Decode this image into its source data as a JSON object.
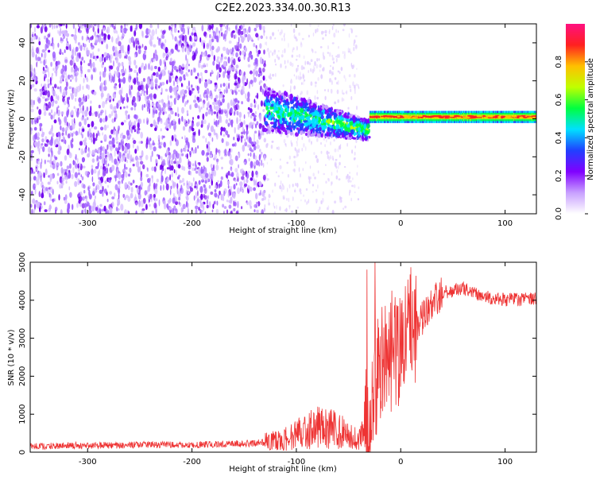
{
  "page": {
    "title": "C2E2.2023.334.00.30.R13"
  },
  "chart_data": [
    {
      "type": "heatmap",
      "title": "",
      "xlabel": "Height of straight line (km)",
      "ylabel": "Frequency (Hz)",
      "xlim": [
        -355,
        130
      ],
      "ylim": [
        -50,
        50
      ],
      "x_ticks": [
        -300,
        -200,
        -100,
        0,
        100
      ],
      "y_ticks": [
        -40,
        -20,
        0,
        20,
        40
      ],
      "colorbar": {
        "label": "Normalized spectral amplitude",
        "range": [
          0,
          1
        ],
        "ticks": [
          "0.0",
          "0.2",
          "0.4",
          "0.6",
          "0.8"
        ],
        "colors": [
          "#ffffff",
          "#c8a0ff",
          "#8000ff",
          "#2040ff",
          "#00e0ff",
          "#00ff40",
          "#c0ff00",
          "#ffc000",
          "#ff2020",
          "#ff1080"
        ]
      },
      "regions": [
        {
          "name": "noise",
          "x": [
            -355,
            -130
          ],
          "freq_range": [
            -50,
            50
          ],
          "amplitude": 0.1
        },
        {
          "name": "transition",
          "x": [
            -130,
            -30
          ],
          "freq_center": [
            5,
            -6
          ],
          "amplitude": 0.4
        },
        {
          "name": "signal",
          "x": [
            -30,
            130
          ],
          "freq_center": [
            1,
            1
          ],
          "amplitude": 0.9
        }
      ]
    },
    {
      "type": "line",
      "title": "",
      "xlabel": "Height of straight line (km)",
      "ylabel": "SNR (10 * v/v)",
      "xlim": [
        -355,
        130
      ],
      "ylim": [
        0,
        5000
      ],
      "x_ticks": [
        -300,
        -200,
        -100,
        0,
        100
      ],
      "y_ticks": [
        0,
        1000,
        2000,
        3000,
        4000,
        5000
      ],
      "color": "#ee3333",
      "series": [
        {
          "x": [
            -355,
            -300,
            -200,
            -140,
            -120,
            -100,
            -80,
            -60,
            -40,
            -30,
            -20,
            -10,
            0,
            10,
            20,
            30,
            40,
            60,
            80,
            100,
            130
          ],
          "values": [
            150,
            180,
            200,
            230,
            300,
            450,
            700,
            550,
            350,
            1000,
            2300,
            2500,
            2700,
            3100,
            3500,
            3900,
            4200,
            4300,
            4100,
            4000,
            4050
          ]
        }
      ]
    }
  ]
}
